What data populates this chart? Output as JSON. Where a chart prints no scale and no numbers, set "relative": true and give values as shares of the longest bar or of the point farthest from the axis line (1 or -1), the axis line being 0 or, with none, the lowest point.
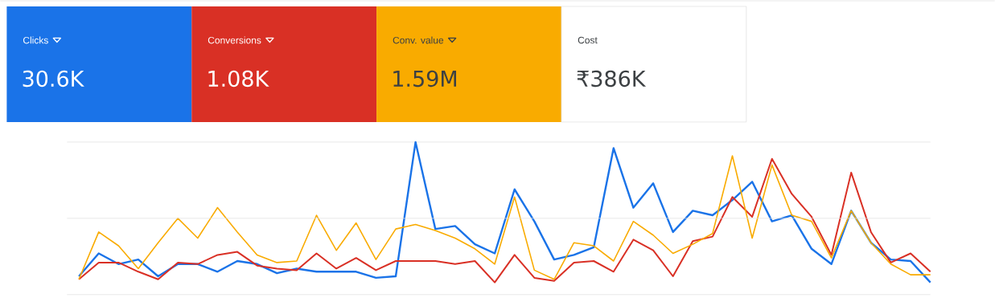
{
  "chart_data": {
    "type": "line",
    "relative": true,
    "grid": "y",
    "legend": "top left",
    "marker": "none",
    "line_style": "solid",
    "categories": [
      null,
      null,
      null,
      null,
      null,
      null,
      null,
      null,
      null,
      null,
      null,
      null,
      null,
      null,
      null,
      null,
      null,
      null,
      null,
      null,
      null,
      null,
      null,
      null,
      null,
      null,
      null,
      null,
      null,
      null,
      null,
      null,
      null,
      null,
      null,
      null,
      null,
      null,
      null,
      null,
      null,
      null,
      null,
      null
    ],
    "series": [
      {
        "name": "Clicks",
        "color": "#1a73e8",
        "values": [
          0.12,
          0.27,
          0.2,
          0.23,
          0.12,
          0.2,
          0.2,
          0.15,
          0.22,
          0.2,
          0.14,
          0.17,
          0.15,
          0.15,
          0.15,
          0.11,
          0.12,
          1.0,
          0.43,
          0.45,
          0.33,
          0.27,
          0.69,
          0.48,
          0.23,
          0.26,
          0.31,
          0.96,
          0.57,
          0.73,
          0.41,
          0.55,
          0.52,
          0.62,
          0.74,
          0.48,
          0.52,
          0.3,
          0.2,
          0.55,
          0.34,
          0.23,
          0.22,
          0.08
        ]
      },
      {
        "name": "Conversions",
        "color": "#d93025",
        "values": [
          0.1,
          0.21,
          0.21,
          0.15,
          0.1,
          0.21,
          0.2,
          0.26,
          0.28,
          0.19,
          0.17,
          0.16,
          0.27,
          0.17,
          0.24,
          0.16,
          0.22,
          0.22,
          0.22,
          0.2,
          0.22,
          0.08,
          0.26,
          0.11,
          0.09,
          0.21,
          0.22,
          0.15,
          0.36,
          0.29,
          0.12,
          0.35,
          0.38,
          0.64,
          0.51,
          0.89,
          0.66,
          0.51,
          0.26,
          0.8,
          0.41,
          0.21,
          0.27,
          0.15
        ]
      },
      {
        "name": "Conv. value",
        "color": "#f9ab00",
        "values": [
          0.1,
          0.41,
          0.32,
          0.17,
          0.34,
          0.5,
          0.37,
          0.57,
          0.41,
          0.26,
          0.21,
          0.22,
          0.52,
          0.29,
          0.47,
          0.23,
          0.43,
          0.46,
          0.42,
          0.37,
          0.3,
          0.2,
          0.64,
          0.16,
          0.1,
          0.34,
          0.32,
          0.22,
          0.48,
          0.39,
          0.27,
          0.33,
          0.4,
          0.91,
          0.37,
          0.85,
          0.52,
          0.48,
          0.24,
          0.55,
          0.34,
          0.2,
          0.13,
          0.13
        ]
      }
    ],
    "ref_lines": [
      {
        "axis": "y",
        "value": 0.5,
        "color": "#e0e0e0"
      }
    ],
    "annotations": [
      "30.6K",
      "1.08K",
      "1.59M",
      "Cost",
      "₹386K"
    ]
  }
}
